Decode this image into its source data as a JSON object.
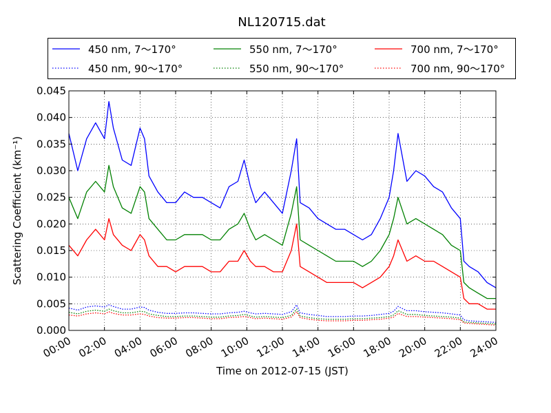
{
  "chart_data": {
    "type": "line",
    "title": "NL120715.dat",
    "xlabel": "Time on 2012-07-15 (JST)",
    "ylabel": "Scattering Coefficient (km⁻¹)",
    "xlim": [
      0,
      24
    ],
    "ylim": [
      0,
      0.045
    ],
    "grid": true,
    "legend_position": "top",
    "x_tick_labels": [
      "00:00",
      "02:00",
      "04:00",
      "06:00",
      "08:00",
      "10:00",
      "12:00",
      "14:00",
      "16:00",
      "18:00",
      "20:00",
      "22:00",
      "24:00"
    ],
    "y_tick_labels": [
      "0.000",
      "0.005",
      "0.010",
      "0.015",
      "0.020",
      "0.025",
      "0.030",
      "0.035",
      "0.040",
      "0.045"
    ],
    "x_hours": [
      0,
      0.5,
      1,
      1.5,
      2,
      2.25,
      2.5,
      3,
      3.5,
      4,
      4.25,
      4.5,
      5,
      5.5,
      6,
      6.5,
      7,
      7.5,
      8,
      8.5,
      9,
      9.5,
      9.85,
      10.2,
      10.5,
      11,
      11.5,
      12,
      12.5,
      12.8,
      13,
      13.5,
      14,
      14.5,
      15,
      15.5,
      16,
      16.5,
      17,
      17.5,
      18,
      18.25,
      18.5,
      19,
      19.5,
      20,
      20.5,
      21,
      21.5,
      22,
      22.2,
      22.5,
      23,
      23.5,
      24
    ],
    "series": [
      {
        "name": "450 nm, 7～170°",
        "color": "#0000ff",
        "style": "solid",
        "values": [
          0.037,
          0.03,
          0.036,
          0.039,
          0.036,
          0.043,
          0.038,
          0.032,
          0.031,
          0.038,
          0.036,
          0.029,
          0.026,
          0.024,
          0.024,
          0.026,
          0.025,
          0.025,
          0.024,
          0.023,
          0.027,
          0.028,
          0.032,
          0.027,
          0.024,
          0.026,
          0.024,
          0.022,
          0.03,
          0.036,
          0.024,
          0.023,
          0.021,
          0.02,
          0.019,
          0.019,
          0.018,
          0.017,
          0.018,
          0.021,
          0.025,
          0.03,
          0.037,
          0.028,
          0.03,
          0.029,
          0.027,
          0.026,
          0.023,
          0.021,
          0.013,
          0.012,
          0.011,
          0.009,
          0.008
        ]
      },
      {
        "name": "550 nm, 7～170°",
        "color": "#008000",
        "style": "solid",
        "values": [
          0.025,
          0.021,
          0.026,
          0.028,
          0.026,
          0.031,
          0.027,
          0.023,
          0.022,
          0.027,
          0.026,
          0.021,
          0.019,
          0.017,
          0.017,
          0.018,
          0.018,
          0.018,
          0.017,
          0.017,
          0.019,
          0.02,
          0.022,
          0.019,
          0.017,
          0.018,
          0.017,
          0.016,
          0.022,
          0.027,
          0.017,
          0.016,
          0.015,
          0.014,
          0.013,
          0.013,
          0.013,
          0.012,
          0.013,
          0.015,
          0.018,
          0.021,
          0.025,
          0.02,
          0.021,
          0.02,
          0.019,
          0.018,
          0.016,
          0.015,
          0.009,
          0.008,
          0.007,
          0.006,
          0.006
        ]
      },
      {
        "name": "700 nm, 7～170°",
        "color": "#ff0000",
        "style": "solid",
        "values": [
          0.016,
          0.014,
          0.017,
          0.019,
          0.017,
          0.021,
          0.018,
          0.016,
          0.015,
          0.018,
          0.017,
          0.014,
          0.012,
          0.012,
          0.011,
          0.012,
          0.012,
          0.012,
          0.011,
          0.011,
          0.013,
          0.013,
          0.015,
          0.013,
          0.012,
          0.012,
          0.011,
          0.011,
          0.015,
          0.02,
          0.012,
          0.011,
          0.01,
          0.009,
          0.009,
          0.009,
          0.009,
          0.008,
          0.009,
          0.01,
          0.012,
          0.014,
          0.017,
          0.013,
          0.014,
          0.013,
          0.013,
          0.012,
          0.011,
          0.01,
          0.006,
          0.005,
          0.005,
          0.004,
          0.004
        ]
      },
      {
        "name": "450 nm, 90～170°",
        "color": "#0000ff",
        "style": "dotted",
        "values": [
          0.0042,
          0.0038,
          0.0044,
          0.0046,
          0.0044,
          0.0048,
          0.0045,
          0.004,
          0.004,
          0.0044,
          0.0043,
          0.0038,
          0.0034,
          0.0032,
          0.0032,
          0.0033,
          0.0033,
          0.0032,
          0.0031,
          0.0031,
          0.0033,
          0.0034,
          0.0036,
          0.0033,
          0.0031,
          0.0032,
          0.0031,
          0.003,
          0.0035,
          0.0048,
          0.0033,
          0.003,
          0.0028,
          0.0026,
          0.0026,
          0.0026,
          0.0027,
          0.0027,
          0.0028,
          0.003,
          0.0032,
          0.0036,
          0.0045,
          0.0037,
          0.0037,
          0.0035,
          0.0034,
          0.0033,
          0.0031,
          0.0029,
          0.002,
          0.0018,
          0.0017,
          0.0016,
          0.0015
        ]
      },
      {
        "name": "550 nm, 90～170°",
        "color": "#008000",
        "style": "dotted",
        "values": [
          0.0034,
          0.0031,
          0.0036,
          0.0038,
          0.0036,
          0.004,
          0.0037,
          0.0033,
          0.0033,
          0.0036,
          0.0035,
          0.0031,
          0.0028,
          0.0026,
          0.0026,
          0.0027,
          0.0027,
          0.0026,
          0.0025,
          0.0025,
          0.0027,
          0.0028,
          0.003,
          0.0027,
          0.0025,
          0.0026,
          0.0025,
          0.0024,
          0.0028,
          0.004,
          0.0027,
          0.0024,
          0.0022,
          0.0021,
          0.0021,
          0.0021,
          0.0022,
          0.0022,
          0.0023,
          0.0024,
          0.0026,
          0.0029,
          0.0037,
          0.003,
          0.003,
          0.0028,
          0.0027,
          0.0026,
          0.0025,
          0.0023,
          0.0016,
          0.0015,
          0.0014,
          0.0013,
          0.0012
        ]
      },
      {
        "name": "700 nm, 90～170°",
        "color": "#ff0000",
        "style": "dotted",
        "values": [
          0.0029,
          0.0027,
          0.0031,
          0.0033,
          0.0031,
          0.0035,
          0.0032,
          0.0029,
          0.0029,
          0.0031,
          0.003,
          0.0027,
          0.0024,
          0.0023,
          0.0023,
          0.0024,
          0.0024,
          0.0023,
          0.0022,
          0.0022,
          0.0024,
          0.0025,
          0.0026,
          0.0024,
          0.0022,
          0.0023,
          0.0022,
          0.0021,
          0.0025,
          0.0035,
          0.0024,
          0.0021,
          0.0019,
          0.0018,
          0.0018,
          0.0018,
          0.0019,
          0.0019,
          0.002,
          0.0021,
          0.0023,
          0.0025,
          0.0032,
          0.0026,
          0.0026,
          0.0025,
          0.0024,
          0.0023,
          0.0022,
          0.002,
          0.0014,
          0.0013,
          0.0012,
          0.0011,
          0.001
        ]
      }
    ]
  },
  "legend": {
    "items": [
      {
        "label": "450 nm, 7～170°",
        "color": "#0000ff",
        "style": "solid"
      },
      {
        "label": "550 nm, 7～170°",
        "color": "#008000",
        "style": "solid"
      },
      {
        "label": "700 nm, 7～170°",
        "color": "#ff0000",
        "style": "solid"
      },
      {
        "label": "450 nm, 90～170°",
        "color": "#0000ff",
        "style": "dotted"
      },
      {
        "label": "550 nm, 90～170°",
        "color": "#008000",
        "style": "dotted"
      },
      {
        "label": "700 nm, 90～170°",
        "color": "#ff0000",
        "style": "dotted"
      }
    ]
  }
}
